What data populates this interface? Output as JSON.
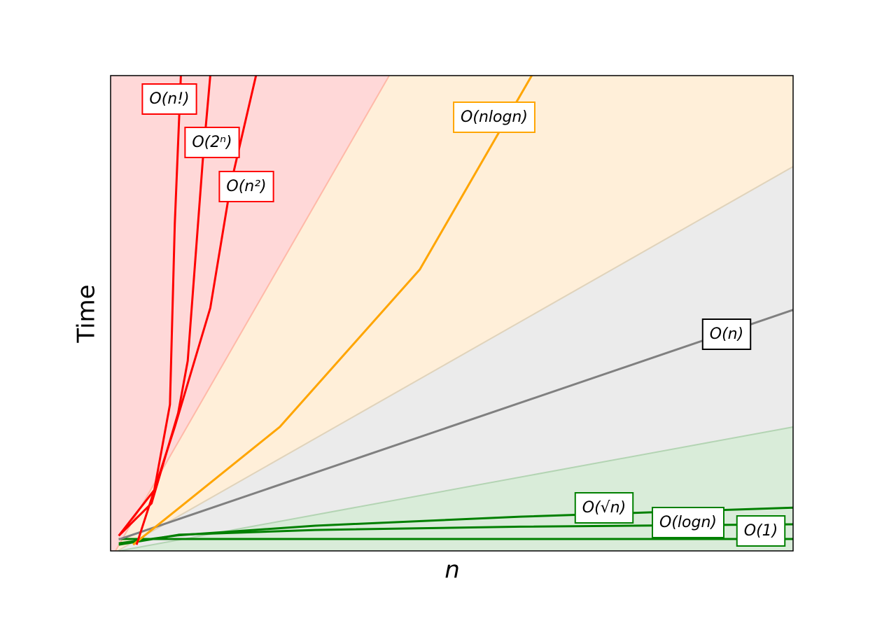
{
  "chart_data": {
    "type": "line",
    "xlabel": "n",
    "ylabel": "Time",
    "xlim": [
      0,
      100
    ],
    "ylim": [
      0,
      100
    ],
    "series": [
      {
        "name": "O(1)",
        "color": "#008000",
        "x": [
          1.2,
          100
        ],
        "values": [
          2.5,
          2.5
        ]
      },
      {
        "name": "O(logn)",
        "color": "#008000",
        "x": [
          1.2,
          10,
          30,
          60,
          100
        ],
        "values": [
          1.3,
          3.4,
          4.4,
          5.1,
          5.6
        ]
      },
      {
        "name": "O(√n)",
        "color": "#008000",
        "x": [
          1.2,
          10,
          30,
          60,
          100
        ],
        "values": [
          1.6,
          3.3,
          5.3,
          7.2,
          9.1
        ]
      },
      {
        "name": "O(n)",
        "color": "#808080",
        "label_color": "#000000",
        "x": [
          1.2,
          100
        ],
        "values": [
          2.4,
          50.7
        ]
      },
      {
        "name": "O(nlogn)",
        "color": "#ffa500",
        "x": [
          3.3,
          10,
          24.8,
          45.3,
          61.7
        ],
        "values": [
          1.3,
          9,
          26.1,
          59.2,
          100
        ]
      },
      {
        "name": "O(n²)",
        "color": "#ff0000",
        "x": [
          3.8,
          9.4,
          14.6,
          17.6,
          21.3
        ],
        "values": [
          1.3,
          26.1,
          51.1,
          77.1,
          100
        ]
      },
      {
        "name": "O(2ⁿ)",
        "color": "#ff0000",
        "x": [
          1.2,
          6,
          9.9,
          11.3,
          13.5,
          14.6
        ],
        "values": [
          3.2,
          10,
          29,
          40,
          82,
          100
        ]
      },
      {
        "name": "O(n!)",
        "color": "#ff0000",
        "x": [
          1.2,
          6.4,
          8.7,
          9.4,
          10.3
        ],
        "values": [
          3.2,
          12.8,
          30.8,
          68.8,
          100
        ]
      }
    ]
  }
}
